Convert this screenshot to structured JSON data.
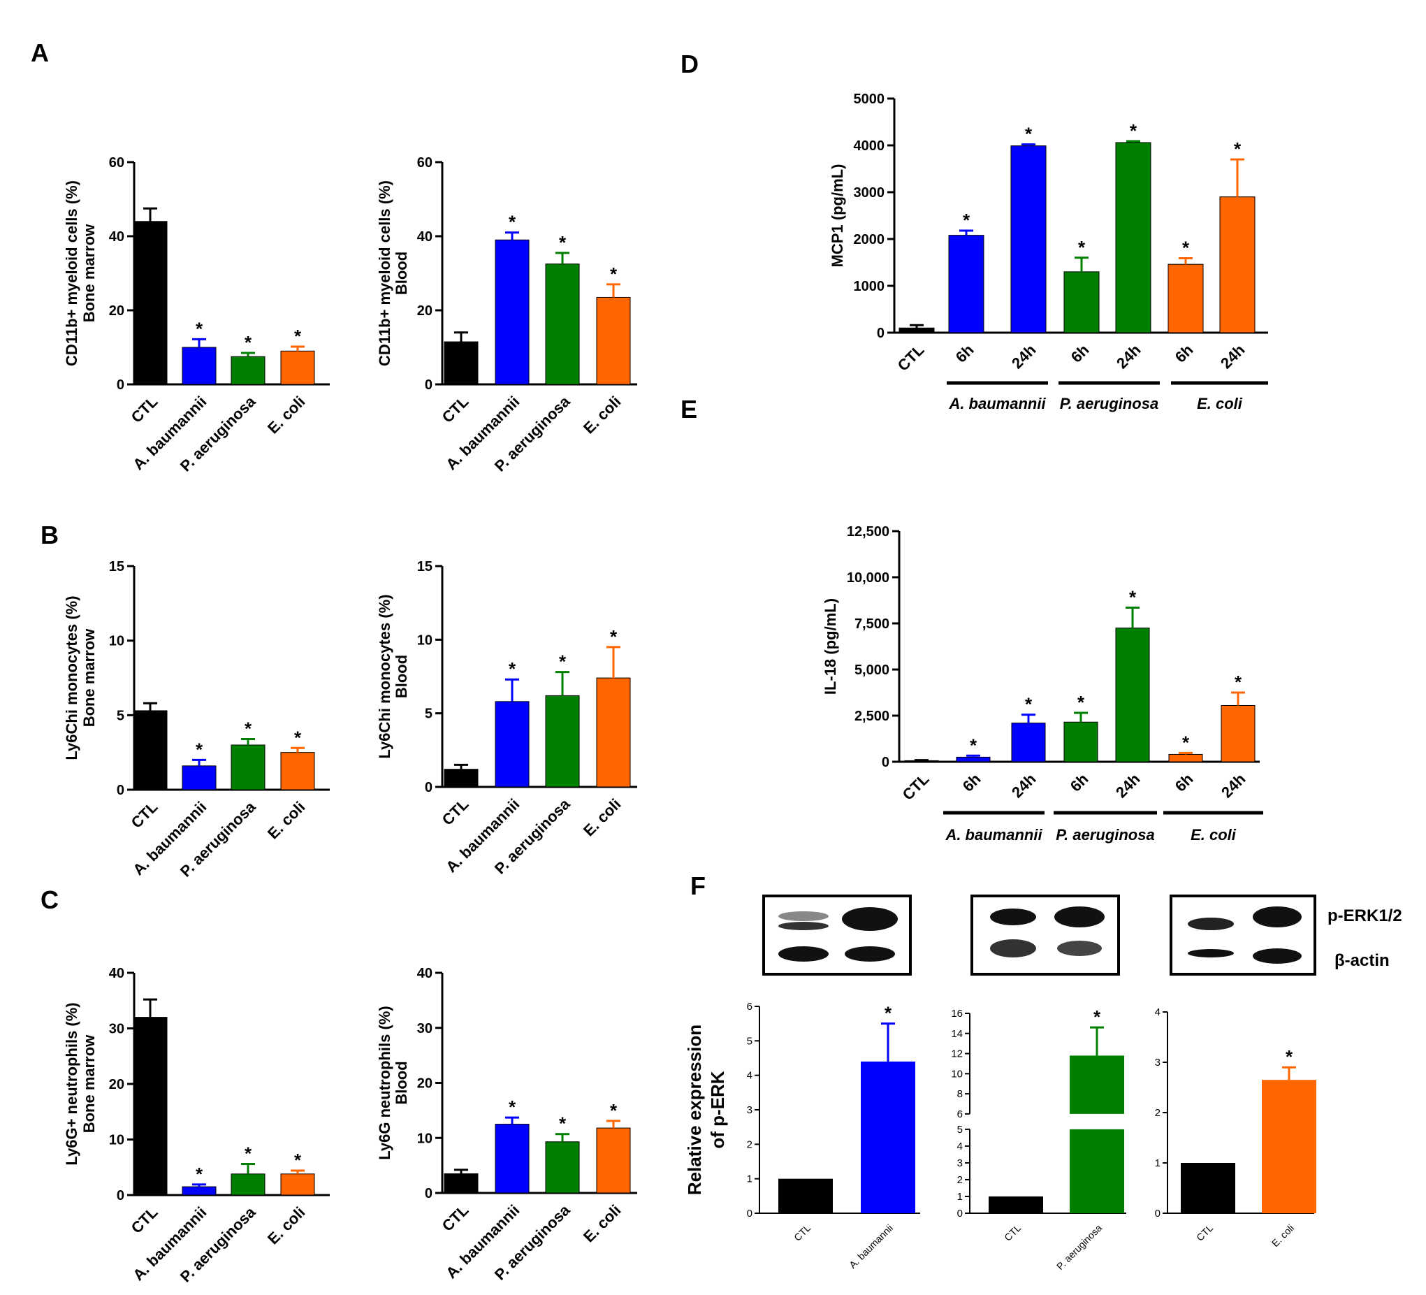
{
  "panel_letters": {
    "A": "A",
    "B": "B",
    "C": "C",
    "D": "D",
    "E": "E",
    "F": "F"
  },
  "colors": {
    "CTL": "#000000",
    "A. baumannii": "#0000ff",
    "P. aeruginosa": "#008000",
    "E. coli": "#ff6600"
  },
  "blot": {
    "target_label": "p-ERK1/2",
    "loading_label": "β-actin"
  },
  "chart_data": [
    {
      "id": "A1",
      "type": "bar",
      "ylabel": [
        "CD11b+ myeloid cells (%)",
        "Bone marrow"
      ],
      "categories": [
        "CTL",
        "A. baumannii",
        "P. aeruginosa",
        "E. coli"
      ],
      "values": [
        44,
        10,
        7.5,
        9
      ],
      "errors": [
        3.5,
        2.2,
        1.0,
        1.2
      ],
      "sig": [
        "",
        "*",
        "*",
        "*"
      ],
      "ylim": [
        0,
        60
      ],
      "yticks": [
        "0",
        "20",
        "40",
        "60"
      ],
      "ytick_values": [
        0,
        20,
        40,
        60
      ]
    },
    {
      "id": "A2",
      "type": "bar",
      "ylabel": [
        "CD11b+ myeloid cells (%)",
        "Blood"
      ],
      "categories": [
        "CTL",
        "A. baumannii",
        "P. aeruginosa",
        "E. coli"
      ],
      "values": [
        11.5,
        39,
        32.5,
        23.5
      ],
      "errors": [
        2.5,
        2.0,
        3.0,
        3.5
      ],
      "sig": [
        "",
        "*",
        "*",
        "*"
      ],
      "ylim": [
        0,
        60
      ],
      "yticks": [
        "0",
        "20",
        "40",
        "60"
      ],
      "ytick_values": [
        0,
        20,
        40,
        60
      ]
    },
    {
      "id": "B1",
      "type": "bar",
      "ylabel": [
        "Ly6Chi monocytes (%)",
        "Bone marrow"
      ],
      "categories": [
        "CTL",
        "A. baumannii",
        "P. aeruginosa",
        "E. coli"
      ],
      "values": [
        5.3,
        1.6,
        3.0,
        2.5
      ],
      "errors": [
        0.5,
        0.4,
        0.4,
        0.3
      ],
      "sig": [
        "",
        "*",
        "*",
        "*"
      ],
      "ylim": [
        0,
        15
      ],
      "yticks": [
        "0",
        "5",
        "10",
        "15"
      ],
      "ytick_values": [
        0,
        5,
        10,
        15
      ]
    },
    {
      "id": "B2",
      "type": "bar",
      "ylabel": [
        "Ly6Chi monocytes (%)",
        "Blood"
      ],
      "categories": [
        "CTL",
        "A. baumannii",
        "P. aeruginosa",
        "E. coli"
      ],
      "values": [
        1.2,
        5.8,
        6.2,
        7.4
      ],
      "errors": [
        0.3,
        1.5,
        1.6,
        2.1
      ],
      "sig": [
        "",
        "*",
        "*",
        "*"
      ],
      "ylim": [
        0,
        15
      ],
      "yticks": [
        "0",
        "5",
        "10",
        "15"
      ],
      "ytick_values": [
        0,
        5,
        10,
        15
      ]
    },
    {
      "id": "C1",
      "type": "bar",
      "ylabel": [
        "Ly6G+ neutrophils (%)",
        "Bone marrow"
      ],
      "categories": [
        "CTL",
        "A. baumannii",
        "P. aeruginosa",
        "E. coli"
      ],
      "values": [
        32,
        1.5,
        3.8,
        3.8
      ],
      "errors": [
        3.2,
        0.4,
        1.8,
        0.6
      ],
      "sig": [
        "",
        "*",
        "*",
        "*"
      ],
      "ylim": [
        0,
        40
      ],
      "yticks": [
        "0",
        "10",
        "20",
        "30",
        "40"
      ],
      "ytick_values": [
        0,
        10,
        20,
        30,
        40
      ]
    },
    {
      "id": "C2",
      "type": "bar",
      "ylabel": [
        "Ly6G neutrophils (%)",
        "Blood"
      ],
      "categories": [
        "CTL",
        "A. baumannii",
        "P. aeruginosa",
        "E. coli"
      ],
      "values": [
        3.5,
        12.5,
        9.3,
        11.8
      ],
      "errors": [
        0.7,
        1.2,
        1.4,
        1.3
      ],
      "sig": [
        "",
        "*",
        "*",
        "*"
      ],
      "ylim": [
        0,
        40
      ],
      "yticks": [
        "0",
        "10",
        "20",
        "30",
        "40"
      ],
      "ytick_values": [
        0,
        10,
        20,
        30,
        40
      ]
    },
    {
      "id": "D",
      "type": "bar",
      "ylabel": [
        "MCP1 (pg/mL)"
      ],
      "categories": [
        "CTL",
        "6h",
        "24h",
        "6h",
        "24h",
        "6h",
        "24h"
      ],
      "bar_groups": [
        "CTL",
        "A. baumannii",
        "A. baumannii",
        "P. aeruginosa",
        "P. aeruginosa",
        "E. coli",
        "E. coli"
      ],
      "values": [
        100,
        2080,
        3990,
        1300,
        4060,
        1460,
        2900
      ],
      "errors": [
        60,
        100,
        30,
        300,
        30,
        130,
        800
      ],
      "sig": [
        "",
        "*",
        "*",
        "*",
        "*",
        "*",
        "*"
      ],
      "groups": [
        "A. baumannii",
        "P. aeruginosa",
        "E. coli"
      ],
      "ylim": [
        0,
        5000
      ],
      "yticks": [
        "0",
        "1000",
        "2000",
        "3000",
        "4000",
        "5000"
      ],
      "ytick_values": [
        0,
        1000,
        2000,
        3000,
        4000,
        5000
      ]
    },
    {
      "id": "E",
      "type": "bar",
      "ylabel": [
        "IL-18 (pg/mL)"
      ],
      "categories": [
        "CTL",
        "6h",
        "24h",
        "6h",
        "24h",
        "6h",
        "24h"
      ],
      "bar_groups": [
        "CTL",
        "A. baumannii",
        "A. baumannii",
        "P. aeruginosa",
        "P. aeruginosa",
        "E. coli",
        "E. coli"
      ],
      "values": [
        60,
        250,
        2100,
        2150,
        7250,
        400,
        3050
      ],
      "errors": [
        30,
        80,
        450,
        500,
        1100,
        80,
        700
      ],
      "sig": [
        "",
        "*",
        "*",
        "*",
        "*",
        "*",
        "*"
      ],
      "groups": [
        "A. baumannii",
        "P. aeruginosa",
        "E. coli"
      ],
      "ylim": [
        0,
        12500
      ],
      "yticks": [
        "0",
        "2,500",
        "5,000",
        "7,500",
        "10,000",
        "12,500"
      ],
      "ytick_values": [
        0,
        2500,
        5000,
        7500,
        10000,
        12500
      ]
    },
    {
      "id": "F1",
      "type": "bar",
      "ylabel": [
        "Relative expression",
        "of p-ERK"
      ],
      "categories": [
        "CTL",
        "A. baumannii"
      ],
      "values": [
        1,
        4.4
      ],
      "errors": [
        0,
        1.1
      ],
      "sig": [
        "",
        "*"
      ],
      "ylim": [
        0,
        6
      ],
      "yticks": [
        "0",
        "1",
        "2",
        "3",
        "4",
        "5",
        "6"
      ],
      "ytick_values": [
        0,
        1,
        2,
        3,
        4,
        5,
        6
      ]
    },
    {
      "id": "F2",
      "type": "bar",
      "categories": [
        "CTL",
        "P. aeruginosa"
      ],
      "values": [
        1,
        11.8
      ],
      "errors": [
        0,
        2.8
      ],
      "sig": [
        "",
        "*"
      ],
      "broken_axis": [
        5,
        6
      ],
      "ylim": [
        0,
        16
      ],
      "yticks": [
        "0",
        "1",
        "2",
        "3",
        "4",
        "5",
        "6",
        "8",
        "10",
        "12",
        "14",
        "16"
      ],
      "ytick_values": [
        0,
        1,
        2,
        3,
        4,
        5,
        6,
        8,
        10,
        12,
        14,
        16
      ]
    },
    {
      "id": "F3",
      "type": "bar",
      "categories": [
        "CTL",
        "E. coli"
      ],
      "values": [
        1,
        2.65
      ],
      "errors": [
        0,
        0.25
      ],
      "sig": [
        "",
        "*"
      ],
      "ylim": [
        0,
        4
      ],
      "yticks": [
        "0",
        "1",
        "2",
        "3",
        "4"
      ],
      "ytick_values": [
        0,
        1,
        2,
        3,
        4
      ]
    }
  ]
}
